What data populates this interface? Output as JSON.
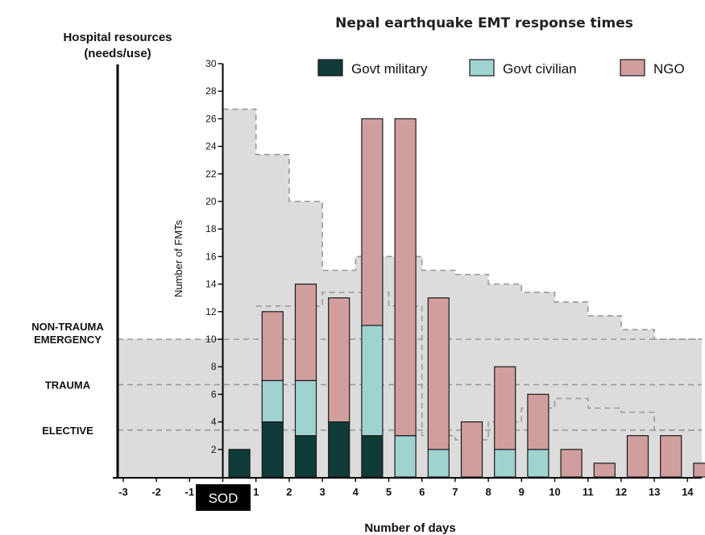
{
  "chart_data": {
    "type": "bar",
    "stacked": true,
    "title": "Nepal earthquake EMT response times",
    "ylabel": "Number of FMTs",
    "xlabel": "Number of days",
    "left_axis_title": "Hospital resources\n(needs/use)",
    "ylim": [
      0,
      30
    ],
    "y_ticks": [
      2,
      4,
      6,
      8,
      10,
      12,
      14,
      16,
      18,
      20,
      22,
      24,
      26,
      28,
      30
    ],
    "x_ticks": [
      -3,
      -2,
      -1,
      1,
      2,
      3,
      4,
      5,
      6,
      7,
      8,
      9,
      10,
      11,
      12,
      13,
      14
    ],
    "xlim": [
      -3,
      14
    ],
    "sod_label": "SOD",
    "legend_position": "top-right",
    "categories": [
      "0.5",
      "1.5",
      "2.5",
      "3.5",
      "4.5",
      "5.5",
      "6.5",
      "7.5",
      "8.5",
      "9.5",
      "10.5",
      "11.5",
      "12.5",
      "13.5",
      "14.5"
    ],
    "series": [
      {
        "name": "Govt military",
        "color": "#0f3b38",
        "values": [
          2,
          4,
          3,
          4,
          3,
          0,
          0,
          0,
          0,
          0,
          0,
          0,
          0,
          0,
          0
        ]
      },
      {
        "name": "Govt civilian",
        "color": "#9fd3d2",
        "values": [
          0,
          3,
          4,
          0,
          8,
          3,
          2,
          0,
          2,
          2,
          0,
          0,
          0,
          0,
          0
        ]
      },
      {
        "name": "NGO",
        "color": "#d19e9e",
        "values": [
          0,
          5,
          7,
          9,
          15,
          23,
          11,
          4,
          6,
          4,
          2,
          1,
          3,
          3,
          1
        ]
      }
    ],
    "resource_levels": [
      {
        "label": "NON-TRAUMA\nEMERGENCY",
        "value": 10
      },
      {
        "label": "TRAUMA",
        "value": 6.7
      },
      {
        "label": "ELECTIVE",
        "value": 3.4
      }
    ],
    "needs_curve": [
      {
        "from": 0,
        "to": 1,
        "value": 26.7
      },
      {
        "from": 1,
        "to": 2,
        "value": 23.4
      },
      {
        "from": 2,
        "to": 3,
        "value": 20.0
      },
      {
        "from": 3,
        "to": 4,
        "value": 15.0
      },
      {
        "from": 4,
        "to": 5,
        "value": 16.0
      },
      {
        "from": 5,
        "to": 6,
        "value": 16.0
      },
      {
        "from": 6,
        "to": 7,
        "value": 15.0
      },
      {
        "from": 7,
        "to": 8,
        "value": 14.7
      },
      {
        "from": 8,
        "to": 9,
        "value": 14.0
      },
      {
        "from": 9,
        "to": 10,
        "value": 13.4
      },
      {
        "from": 10,
        "to": 11,
        "value": 12.7
      },
      {
        "from": 11,
        "to": 12,
        "value": 11.7
      },
      {
        "from": 12,
        "to": 13,
        "value": 10.7
      },
      {
        "from": 13,
        "to": 14,
        "value": 10.0
      }
    ],
    "use_curve": [
      {
        "from": 1,
        "to": 2,
        "value": 12.4
      },
      {
        "from": 2,
        "to": 3,
        "value": 12.4
      },
      {
        "from": 3,
        "to": 4,
        "value": 13.4
      },
      {
        "from": 4,
        "to": 5,
        "value": 13.4
      },
      {
        "from": 5,
        "to": 6,
        "value": 12.4
      },
      {
        "from": 6,
        "to": 7,
        "value": 3.0
      },
      {
        "from": 7,
        "to": 8,
        "value": 2.7
      },
      {
        "from": 8,
        "to": 9,
        "value": 4.0
      },
      {
        "from": 9,
        "to": 10,
        "value": 5.0
      },
      {
        "from": 10,
        "to": 11,
        "value": 5.7
      },
      {
        "from": 11,
        "to": 12,
        "value": 5.0
      },
      {
        "from": 12,
        "to": 13,
        "value": 4.7
      },
      {
        "from": 13,
        "to": 14,
        "value": 3.4
      }
    ]
  }
}
